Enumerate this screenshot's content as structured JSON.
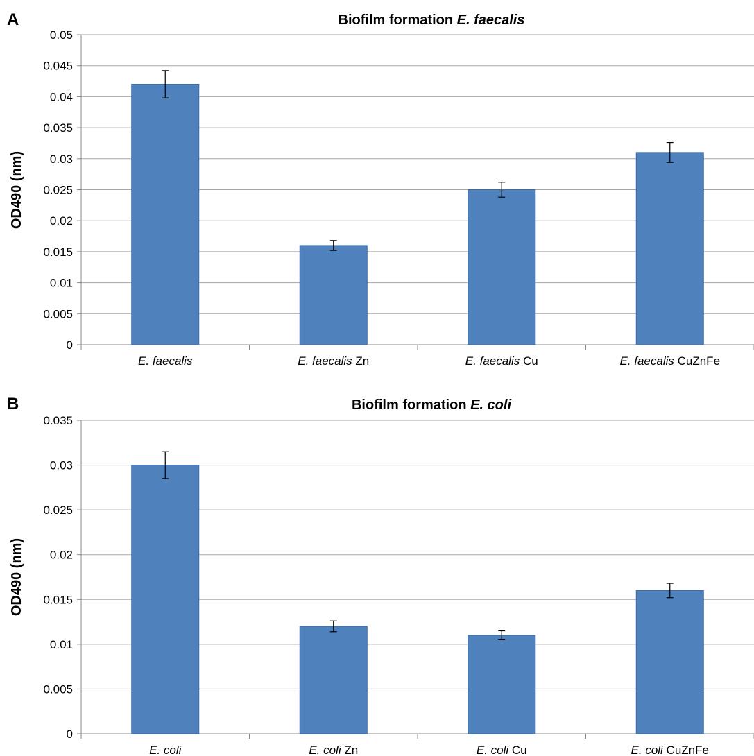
{
  "chart_data": [
    {
      "panel_label": "A",
      "type": "bar",
      "title": {
        "bold": "Biofilm formation ",
        "italic": "E. faecalis"
      },
      "ylabel": "OD490 (nm)",
      "xlabel": "",
      "ylim": [
        0,
        0.05
      ],
      "yticks": [
        "0",
        "0.005",
        "0.01",
        "0.015",
        "0.02",
        "0.025",
        "0.03",
        "0.035",
        "0.04",
        "0.045",
        "0.05"
      ],
      "grid": true,
      "legend": "none",
      "bar_color": "#4f81bd",
      "categories": [
        {
          "italic": "E. faecalis",
          "normal": ""
        },
        {
          "italic": "E. faecalis",
          "normal": " Zn"
        },
        {
          "italic": "E. faecalis",
          "normal": " Cu"
        },
        {
          "italic": "E. faecalis",
          "normal": " CuZnFe"
        }
      ],
      "values": [
        0.042,
        0.016,
        0.025,
        0.031
      ],
      "errors": [
        0.0022,
        0.0008,
        0.0012,
        0.0016
      ]
    },
    {
      "panel_label": "B",
      "type": "bar",
      "title": {
        "bold": "Biofilm formation ",
        "italic": "E. coli"
      },
      "ylabel": "OD490 (nm)",
      "xlabel": "",
      "ylim": [
        0,
        0.035
      ],
      "yticks": [
        "0",
        "0.005",
        "0.01",
        "0.015",
        "0.02",
        "0.025",
        "0.03",
        "0.035"
      ],
      "grid": true,
      "legend": "none",
      "bar_color": "#4f81bd",
      "categories": [
        {
          "italic": "E. coli",
          "normal": ""
        },
        {
          "italic": "E. coli",
          "normal": " Zn"
        },
        {
          "italic": "E. coli",
          "normal": " Cu"
        },
        {
          "italic": "E. coli",
          "normal": " CuZnFe"
        }
      ],
      "values": [
        0.03,
        0.012,
        0.011,
        0.016
      ],
      "errors": [
        0.0015,
        0.0006,
        0.0005,
        0.0008
      ]
    }
  ]
}
